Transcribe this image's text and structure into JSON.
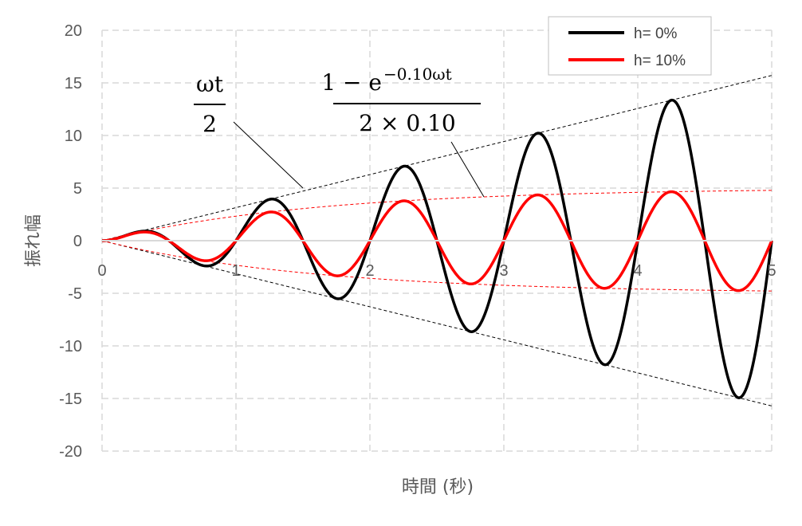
{
  "chart_data": {
    "type": "line",
    "title": "",
    "xlabel": "時間 (秒)",
    "ylabel": "振れ幅",
    "xlim": [
      0,
      5
    ],
    "ylim": [
      -20,
      20
    ],
    "x_ticks": [
      "0",
      "1",
      "2",
      "3",
      "4",
      "5"
    ],
    "y_ticks": [
      "20",
      "15",
      "10",
      "5",
      "0",
      "-5",
      "-10",
      "-15",
      "-20"
    ],
    "grid": "dashed",
    "legend_position": "top-right",
    "omega": 6.2832,
    "series": [
      {
        "name": "h= 0%",
        "color": "#000000",
        "expression": "(ω t / 2) · sin(ω t)"
      },
      {
        "name": "h= 10%",
        "color": "#ff0000",
        "expression": "(1 − e^(−0.10 ω t)) / (2 × 0.10) · sin(ω t)"
      }
    ],
    "envelopes": [
      {
        "color": "#000000",
        "style": "dashed",
        "expression": "± ω t / 2"
      },
      {
        "color": "#ff0000",
        "style": "dashed",
        "expression": "± (1 − e^(−0.10 ω t)) / (2 × 0.10)"
      }
    ],
    "annotations": [
      {
        "numerator": "ωt",
        "denominator": "2"
      },
      {
        "numerator_main": "1 − e",
        "numerator_exponent": "−0.10ωt",
        "denominator": "2 × 0.10"
      }
    ]
  }
}
